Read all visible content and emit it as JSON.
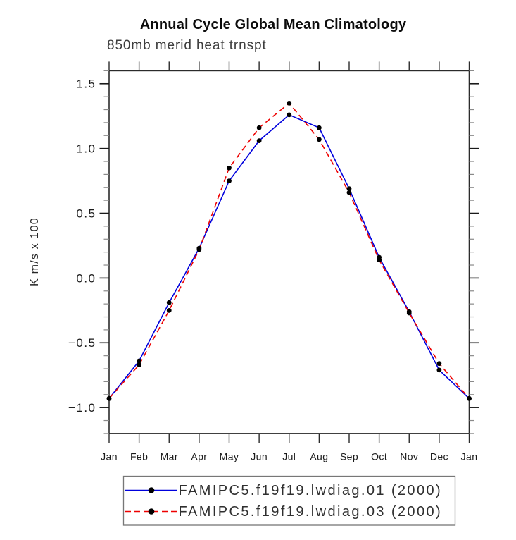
{
  "page": {
    "background": "#ffffff"
  },
  "colors": {
    "axis": "#2b2b2b",
    "tick_minor": "#8a8a8a",
    "tick_major": "#1a1a1a",
    "label_text": "#1a1a1a",
    "legend_border": "#777777",
    "marker": "#000000",
    "series_blue": "#0000dd",
    "series_red": "#ee0000"
  },
  "chart_data": {
    "type": "line",
    "title": "Annual Cycle Global Mean Climatology",
    "subtitle": "850mb merid heat trnspt",
    "ylabel": "K m/s x 100",
    "xlabel": "",
    "categories": [
      "Jan",
      "Feb",
      "Mar",
      "Apr",
      "May",
      "Jun",
      "Jul",
      "Aug",
      "Sep",
      "Oct",
      "Nov",
      "Dec",
      "Jan"
    ],
    "ylim": [
      -1.2,
      1.6
    ],
    "ytick_major": [
      {
        "value": 1.5,
        "label": "1.5"
      },
      {
        "value": 1.0,
        "label": "1.0"
      },
      {
        "value": 0.5,
        "label": "0.5"
      },
      {
        "value": 0.0,
        "label": "0.0"
      },
      {
        "value": -0.5,
        "label": "−0.5"
      },
      {
        "value": -1.0,
        "label": "−1.0"
      }
    ],
    "ytick_minor_step": 0.1,
    "grid": false,
    "legend_position": "bottom-left",
    "marker": {
      "shape": "circle",
      "color": "#000000"
    },
    "series": [
      {
        "name": "FAMIPC5.f19f19.lwdiag.01 (2000)",
        "color": "#0000dd",
        "line_style": "solid",
        "values": [
          -0.93,
          -0.64,
          -0.19,
          0.23,
          0.75,
          1.06,
          1.26,
          1.16,
          0.69,
          0.16,
          -0.26,
          -0.71,
          -0.93
        ]
      },
      {
        "name": "FAMIPC5.f19f19.lwdiag.03 (2000)",
        "color": "#ee0000",
        "line_style": "dashed",
        "values": [
          -0.93,
          -0.67,
          -0.25,
          0.22,
          0.85,
          1.16,
          1.35,
          1.07,
          0.66,
          0.14,
          -0.27,
          -0.66,
          -0.93
        ]
      }
    ]
  }
}
